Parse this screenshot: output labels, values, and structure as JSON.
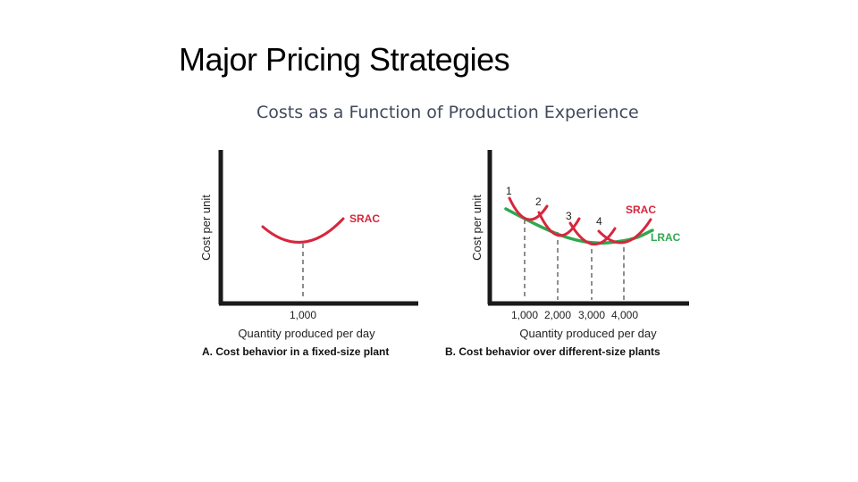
{
  "slide": {
    "title": "Major Pricing Strategies",
    "subtitle": "Costs as a Function of Production Experience"
  },
  "colors": {
    "srac": "#d7263d",
    "lrac": "#2fa84f",
    "axis": "#1a1a1a",
    "guide": "#444444"
  },
  "chart_data": [
    {
      "id": "A",
      "type": "line",
      "caption": "A. Cost behavior in a fixed-size plant",
      "xlabel": "Quantity produced per day",
      "ylabel": "Cost per unit",
      "x_ticks": [
        "1,000"
      ],
      "series": [
        {
          "name": "SRAC",
          "curves": [
            {
              "min_at": 1000
            }
          ]
        }
      ]
    },
    {
      "id": "B",
      "type": "line",
      "caption": "B. Cost behavior over different-size plants",
      "xlabel": "Quantity produced per day",
      "ylabel": "Cost per unit",
      "x_ticks": [
        "1,000",
        "2,000",
        "3,000",
        "4,000"
      ],
      "series": [
        {
          "name": "SRAC",
          "curves": [
            {
              "label": "1",
              "min_at": 1000
            },
            {
              "label": "2",
              "min_at": 2000
            },
            {
              "label": "3",
              "min_at": 3000
            },
            {
              "label": "4",
              "min_at": 4000
            }
          ]
        },
        {
          "name": "LRAC"
        }
      ]
    }
  ]
}
